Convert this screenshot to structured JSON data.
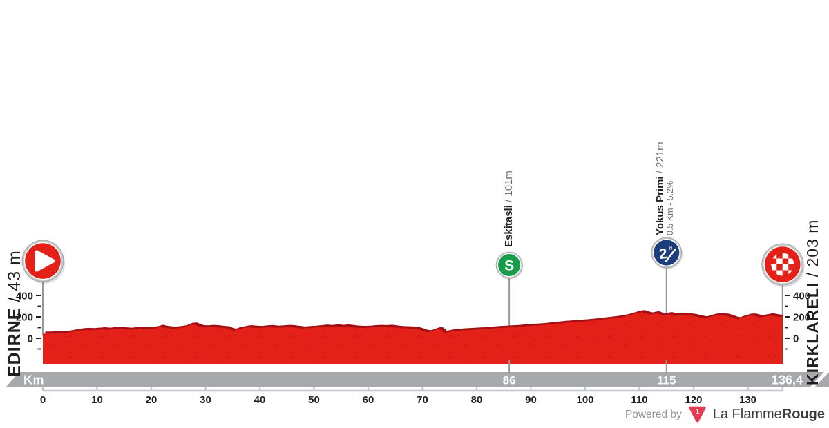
{
  "colors": {
    "profile_red": "#e32119",
    "profile_dark": "#a31013",
    "speckle": "#c01414",
    "bar_gray": "#a7a9ac",
    "stem_gray": "#97999b",
    "ruler_gray": "#c3c5c7",
    "axis_text": "#231f20",
    "gray_text": "#6d6e71",
    "sprint_green": "#199b4c",
    "climb_blue": "#1c3d7c",
    "marker_white": "#ffffff",
    "logo_red": "#e63c52"
  },
  "start": {
    "name": "EDIRNE",
    "suffix": " / 43 m",
    "km": 0,
    "elevation_m": 43
  },
  "finish": {
    "name": "KIRKLARELI",
    "suffix": " / 203 m",
    "km": 136.4,
    "elevation_m": 203
  },
  "waypoints": [
    {
      "kind": "sprint",
      "name": "Eskitasli",
      "suffix": " / 101m",
      "detail": "",
      "km": 86,
      "elevation_m": 101,
      "bar_label": "86"
    },
    {
      "kind": "climb",
      "name": "Yokus Primi",
      "suffix": " / 221m",
      "detail": "0.5 Km - 5.2%",
      "km": 115,
      "elevation_m": 221,
      "bar_label": "115"
    }
  ],
  "axis": {
    "km_label": "Km",
    "end_label": "136,4",
    "x_ticks": [
      0,
      10,
      20,
      30,
      40,
      50,
      60,
      70,
      80,
      90,
      100,
      110,
      120,
      130
    ],
    "x_max": 136.4,
    "y_ticks_labeled": [
      0,
      200,
      400
    ],
    "y_ticks_minor": [
      -100,
      100,
      300
    ]
  },
  "footer": {
    "powered_by": "Powered by",
    "badge": "1",
    "brand_prefix": "La Flamme",
    "brand_suffix": "Rouge"
  },
  "chart_data": {
    "type": "area",
    "xlabel": "Km",
    "x_range_km": [
      0,
      136.4
    ],
    "y_ticks_m": [
      0,
      200,
      400
    ],
    "x_ticks_km": [
      0,
      10,
      20,
      30,
      40,
      50,
      60,
      70,
      80,
      90,
      100,
      110,
      120,
      130
    ],
    "markers": [
      {
        "label": "EDIRNE",
        "km": 0,
        "elevation_m": 43,
        "type": "start"
      },
      {
        "label": "Eskitasli",
        "km": 86,
        "elevation_m": 101,
        "type": "sprint"
      },
      {
        "label": "Yokus Primi",
        "km": 115,
        "elevation_m": 221,
        "type": "climb-cat2",
        "climb": "0.5 Km - 5.2%"
      },
      {
        "label": "KIRKLARELI",
        "km": 136.4,
        "elevation_m": 203,
        "type": "finish"
      }
    ],
    "profile_km_m": [
      [
        0,
        43
      ],
      [
        1,
        44
      ],
      [
        2,
        46
      ],
      [
        3,
        45
      ],
      [
        4,
        48
      ],
      [
        5,
        56
      ],
      [
        6,
        66
      ],
      [
        7,
        74
      ],
      [
        8,
        78
      ],
      [
        9,
        76
      ],
      [
        10,
        80
      ],
      [
        11,
        84
      ],
      [
        12,
        80
      ],
      [
        13,
        86
      ],
      [
        14,
        88
      ],
      [
        15,
        83
      ],
      [
        16,
        80
      ],
      [
        17,
        86
      ],
      [
        18,
        90
      ],
      [
        19,
        85
      ],
      [
        20,
        88
      ],
      [
        21,
        96
      ],
      [
        21.7,
        107
      ],
      [
        22.3,
        100
      ],
      [
        23,
        94
      ],
      [
        24,
        90
      ],
      [
        25,
        94
      ],
      [
        26,
        101
      ],
      [
        26.6,
        113
      ],
      [
        27.2,
        126
      ],
      [
        28,
        128
      ],
      [
        28.6,
        115
      ],
      [
        29.2,
        104
      ],
      [
        30,
        102
      ],
      [
        31,
        106
      ],
      [
        32,
        103
      ],
      [
        33,
        97
      ],
      [
        34,
        93
      ],
      [
        34.6,
        78
      ],
      [
        35.2,
        70
      ],
      [
        35.8,
        82
      ],
      [
        36.5,
        90
      ],
      [
        37.3,
        99
      ],
      [
        38,
        103
      ],
      [
        39,
        99
      ],
      [
        40,
        96
      ],
      [
        41,
        101
      ],
      [
        42,
        105
      ],
      [
        43,
        99
      ],
      [
        44,
        102
      ],
      [
        45,
        106
      ],
      [
        46,
        103
      ],
      [
        47,
        96
      ],
      [
        48,
        91
      ],
      [
        49,
        95
      ],
      [
        50,
        98
      ],
      [
        51,
        103
      ],
      [
        52,
        109
      ],
      [
        53,
        105
      ],
      [
        54,
        112
      ],
      [
        55,
        106
      ],
      [
        56,
        110
      ],
      [
        57,
        104
      ],
      [
        58,
        99
      ],
      [
        59,
        97
      ],
      [
        60,
        99
      ],
      [
        61,
        103
      ],
      [
        62,
        106
      ],
      [
        63,
        104
      ],
      [
        64,
        107
      ],
      [
        65,
        100
      ],
      [
        66,
        95
      ],
      [
        67,
        93
      ],
      [
        68,
        91
      ],
      [
        69,
        85
      ],
      [
        70,
        70
      ],
      [
        70.6,
        59
      ],
      [
        71.2,
        57
      ],
      [
        71.8,
        67
      ],
      [
        72.4,
        78
      ],
      [
        73,
        88
      ],
      [
        73.5,
        78
      ],
      [
        74,
        52
      ],
      [
        74.6,
        57
      ],
      [
        75.2,
        63
      ],
      [
        76,
        68
      ],
      [
        77,
        72
      ],
      [
        78,
        76
      ],
      [
        79,
        78
      ],
      [
        80,
        81
      ],
      [
        81,
        84
      ],
      [
        82,
        88
      ],
      [
        83,
        92
      ],
      [
        84,
        96
      ],
      [
        85,
        99
      ],
      [
        86,
        101
      ],
      [
        87,
        104
      ],
      [
        88,
        108
      ],
      [
        89,
        112
      ],
      [
        90,
        116
      ],
      [
        91,
        119
      ],
      [
        92,
        122
      ],
      [
        93,
        127
      ],
      [
        94,
        132
      ],
      [
        95,
        138
      ],
      [
        96,
        143
      ],
      [
        97,
        147
      ],
      [
        98,
        151
      ],
      [
        99,
        155
      ],
      [
        100,
        158
      ],
      [
        101,
        163
      ],
      [
        102,
        168
      ],
      [
        103,
        174
      ],
      [
        104,
        180
      ],
      [
        105,
        186
      ],
      [
        106,
        192
      ],
      [
        107,
        200
      ],
      [
        108,
        212
      ],
      [
        109,
        228
      ],
      [
        110,
        240
      ],
      [
        110.6,
        243
      ],
      [
        111.2,
        232
      ],
      [
        112,
        222
      ],
      [
        112.6,
        229
      ],
      [
        113.2,
        233
      ],
      [
        113.8,
        222
      ],
      [
        114.4,
        212
      ],
      [
        115,
        221
      ],
      [
        115.6,
        225
      ],
      [
        116.2,
        219
      ],
      [
        117,
        216
      ],
      [
        118,
        219
      ],
      [
        119,
        214
      ],
      [
        120,
        208
      ],
      [
        121,
        196
      ],
      [
        122,
        186
      ],
      [
        122.6,
        193
      ],
      [
        123.2,
        203
      ],
      [
        124,
        212
      ],
      [
        125,
        214
      ],
      [
        126,
        210
      ],
      [
        127,
        196
      ],
      [
        127.6,
        183
      ],
      [
        128.2,
        178
      ],
      [
        128.8,
        190
      ],
      [
        129.5,
        200
      ],
      [
        130.2,
        210
      ],
      [
        131,
        212
      ],
      [
        131.6,
        205
      ],
      [
        132.2,
        196
      ],
      [
        132.8,
        201
      ],
      [
        133.5,
        208
      ],
      [
        134.2,
        214
      ],
      [
        134.8,
        209
      ],
      [
        135.4,
        203
      ],
      [
        136,
        200
      ],
      [
        136.4,
        203
      ]
    ]
  }
}
